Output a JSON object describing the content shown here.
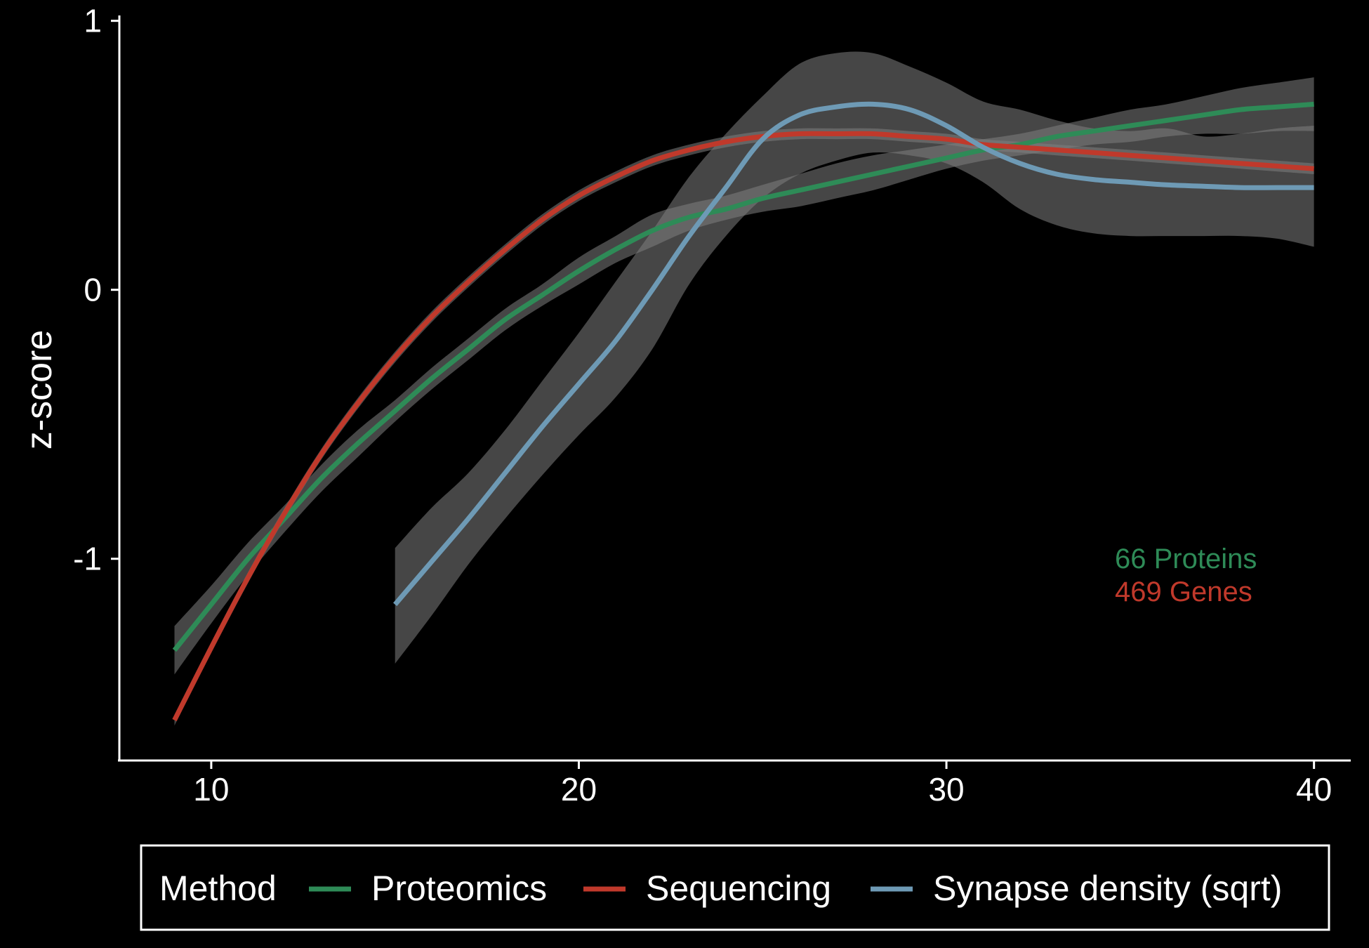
{
  "chart_data": {
    "type": "line",
    "title": "",
    "xlabel": "",
    "ylabel": "z-score",
    "xlim": [
      7.5,
      41
    ],
    "ylim": [
      -1.75,
      1.02
    ],
    "x_ticks": [
      10,
      20,
      30,
      40
    ],
    "y_ticks": [
      -1,
      0,
      1
    ],
    "grid": false,
    "legend": {
      "title": "Method",
      "position": "bottom",
      "entries": [
        "Proteomics",
        "Sequencing",
        "Synapse density (sqrt)"
      ]
    },
    "annotations": [
      {
        "text": "66 Proteins",
        "color": "#2e8b57"
      },
      {
        "text": "469 Genes",
        "color": "#c0392b"
      }
    ],
    "series": [
      {
        "name": "Proteomics",
        "color": "#2e8b57",
        "x": [
          9,
          10,
          11,
          12,
          13,
          14,
          15,
          16,
          17,
          18,
          19,
          20,
          21,
          22,
          23,
          24,
          25,
          26,
          27,
          28,
          29,
          30,
          31,
          32,
          33,
          34,
          35,
          36,
          37,
          38,
          39,
          40
        ],
        "y": [
          -1.34,
          -1.17,
          -1.0,
          -0.85,
          -0.7,
          -0.57,
          -0.45,
          -0.33,
          -0.22,
          -0.11,
          -0.02,
          0.07,
          0.15,
          0.22,
          0.27,
          0.3,
          0.34,
          0.37,
          0.4,
          0.43,
          0.46,
          0.49,
          0.52,
          0.54,
          0.57,
          0.59,
          0.61,
          0.63,
          0.65,
          0.67,
          0.68,
          0.69
        ],
        "ci_lower": [
          -1.43,
          -1.24,
          -1.06,
          -0.9,
          -0.75,
          -0.62,
          -0.49,
          -0.37,
          -0.26,
          -0.15,
          -0.06,
          0.02,
          0.1,
          0.16,
          0.22,
          0.26,
          0.29,
          0.31,
          0.34,
          0.37,
          0.41,
          0.45,
          0.48,
          0.5,
          0.52,
          0.54,
          0.55,
          0.57,
          0.58,
          0.58,
          0.59,
          0.59
        ],
        "ci_upper": [
          -1.25,
          -1.1,
          -0.94,
          -0.8,
          -0.65,
          -0.52,
          -0.41,
          -0.29,
          -0.18,
          -0.07,
          0.02,
          0.12,
          0.2,
          0.28,
          0.32,
          0.35,
          0.39,
          0.43,
          0.47,
          0.5,
          0.52,
          0.54,
          0.56,
          0.58,
          0.61,
          0.64,
          0.67,
          0.69,
          0.72,
          0.75,
          0.77,
          0.79
        ]
      },
      {
        "name": "Sequencing",
        "color": "#c0392b",
        "x": [
          9,
          10,
          11,
          12,
          13,
          14,
          15,
          16,
          17,
          18,
          19,
          20,
          21,
          22,
          23,
          24,
          25,
          26,
          27,
          28,
          29,
          30,
          31,
          32,
          33,
          34,
          35,
          36,
          37,
          38,
          39,
          40
        ],
        "y": [
          -1.6,
          -1.33,
          -1.07,
          -0.83,
          -0.61,
          -0.42,
          -0.25,
          -0.1,
          0.03,
          0.15,
          0.26,
          0.35,
          0.42,
          0.48,
          0.52,
          0.55,
          0.57,
          0.58,
          0.58,
          0.58,
          0.57,
          0.56,
          0.54,
          0.53,
          0.52,
          0.51,
          0.5,
          0.49,
          0.48,
          0.47,
          0.46,
          0.45
        ],
        "ci_lower": [
          -1.62,
          -1.35,
          -1.09,
          -0.85,
          -0.63,
          -0.44,
          -0.27,
          -0.12,
          0.01,
          0.13,
          0.24,
          0.33,
          0.4,
          0.46,
          0.5,
          0.53,
          0.55,
          0.56,
          0.56,
          0.56,
          0.55,
          0.54,
          0.52,
          0.51,
          0.5,
          0.49,
          0.48,
          0.47,
          0.46,
          0.45,
          0.44,
          0.43
        ],
        "ci_upper": [
          -1.58,
          -1.31,
          -1.05,
          -0.81,
          -0.59,
          -0.4,
          -0.23,
          -0.08,
          0.05,
          0.17,
          0.28,
          0.37,
          0.44,
          0.5,
          0.54,
          0.57,
          0.59,
          0.6,
          0.6,
          0.6,
          0.59,
          0.58,
          0.56,
          0.55,
          0.54,
          0.53,
          0.52,
          0.51,
          0.5,
          0.49,
          0.48,
          0.47
        ]
      },
      {
        "name": "Synapse density (sqrt)",
        "color": "#6e9ab5",
        "x": [
          15,
          16,
          17,
          18,
          19,
          20,
          21,
          22,
          23,
          24,
          25,
          26,
          27,
          28,
          29,
          30,
          31,
          32,
          33,
          34,
          35,
          36,
          37,
          38,
          39,
          40
        ],
        "y": [
          -1.17,
          -1.01,
          -0.85,
          -0.68,
          -0.51,
          -0.35,
          -0.19,
          0.0,
          0.2,
          0.38,
          0.56,
          0.65,
          0.68,
          0.69,
          0.67,
          0.61,
          0.53,
          0.47,
          0.43,
          0.41,
          0.4,
          0.39,
          0.385,
          0.38,
          0.38,
          0.38
        ],
        "ci_lower": [
          -1.39,
          -1.21,
          -1.02,
          -0.85,
          -0.69,
          -0.54,
          -0.4,
          -0.22,
          0.02,
          0.2,
          0.34,
          0.43,
          0.48,
          0.51,
          0.5,
          0.47,
          0.4,
          0.3,
          0.24,
          0.21,
          0.2,
          0.2,
          0.2,
          0.2,
          0.19,
          0.16
        ],
        "ci_upper": [
          -0.96,
          -0.81,
          -0.68,
          -0.52,
          -0.34,
          -0.16,
          0.03,
          0.22,
          0.42,
          0.58,
          0.72,
          0.84,
          0.88,
          0.88,
          0.83,
          0.77,
          0.7,
          0.67,
          0.63,
          0.6,
          0.59,
          0.6,
          0.57,
          0.58,
          0.6,
          0.61
        ]
      }
    ]
  }
}
